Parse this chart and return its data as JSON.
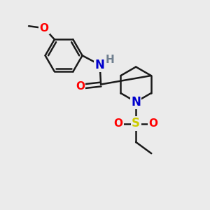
{
  "bg_color": "#ebebeb",
  "bond_color": "#1a1a1a",
  "bond_width": 1.8,
  "atom_colors": {
    "O": "#ff0000",
    "N": "#0000cd",
    "S": "#cccc00",
    "H": "#708090",
    "C": "#1a1a1a"
  },
  "font_size": 11,
  "fig_size": [
    3.0,
    3.0
  ],
  "dpi": 100
}
